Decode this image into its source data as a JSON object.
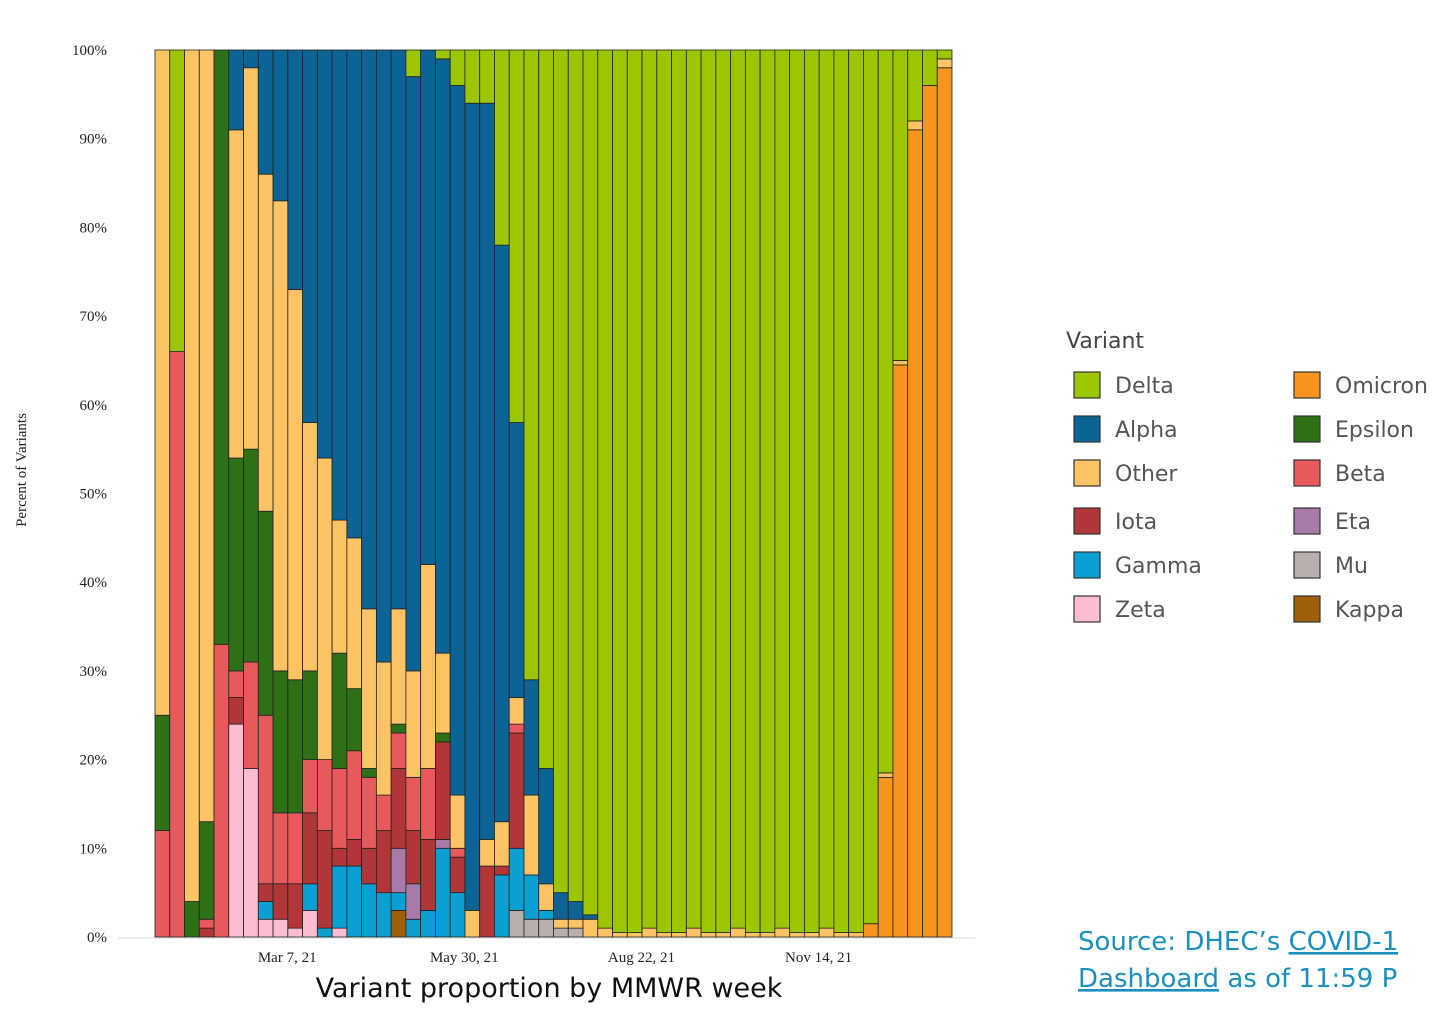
{
  "chart_data": {
    "type": "stacked_bar",
    "xlabel": "Variant proportion by MMWR week",
    "ylabel": "Percent of Variants",
    "legend_title": "Variant",
    "source": {
      "prefix": "Source:  DHEC’s",
      "link1": "COVID-1",
      "link2": "Dashboard",
      "suffix": "as of 11:59 P"
    },
    "ylim": [
      0,
      100
    ],
    "yticks": [
      {
        "value": 0,
        "label": "0%"
      },
      {
        "value": 10,
        "label": "10%"
      },
      {
        "value": 20,
        "label": "20%"
      },
      {
        "value": 30,
        "label": "30%"
      },
      {
        "value": 40,
        "label": "40%"
      },
      {
        "value": 50,
        "label": "50%"
      },
      {
        "value": 60,
        "label": "60%"
      },
      {
        "value": 70,
        "label": "70%"
      },
      {
        "value": 80,
        "label": "80%"
      },
      {
        "value": 90,
        "label": "90%"
      },
      {
        "value": 100,
        "label": "100%"
      }
    ],
    "categories": [
      null,
      null,
      null,
      null,
      null,
      null,
      null,
      null,
      null,
      "Mar 7, 21",
      null,
      null,
      null,
      null,
      null,
      null,
      null,
      null,
      null,
      null,
      null,
      "May 30, 21",
      null,
      null,
      null,
      null,
      null,
      null,
      null,
      null,
      null,
      null,
      null,
      "Aug 22, 21",
      null,
      null,
      null,
      null,
      null,
      null,
      null,
      null,
      null,
      null,
      null,
      "Nov 14, 21",
      null,
      null,
      null,
      null,
      null,
      null,
      null,
      null
    ],
    "series": [
      {
        "name": "Kappa",
        "color": "#a05f0a",
        "values": [
          0,
          0,
          0,
          0,
          0,
          0,
          0,
          0,
          0,
          0,
          0,
          0,
          0,
          0,
          0,
          0,
          3,
          0,
          0,
          0,
          0,
          0,
          0,
          0,
          0,
          0,
          0,
          0,
          0,
          0,
          0,
          0,
          0,
          0,
          0,
          0,
          0,
          0,
          0,
          0,
          0,
          0,
          0,
          0,
          0,
          0,
          0,
          0,
          0,
          0,
          0,
          0,
          0,
          0
        ]
      },
      {
        "name": "Mu",
        "color": "#b8b0ac",
        "values": [
          0,
          0,
          0,
          0,
          0,
          0,
          0,
          0,
          0,
          0,
          0,
          0,
          0,
          0,
          0,
          0,
          0,
          0,
          0,
          0,
          0,
          0,
          0,
          0,
          3,
          2,
          2,
          1,
          1,
          0,
          0,
          0,
          0,
          0,
          0,
          0,
          0,
          0,
          0,
          0,
          0,
          0,
          0,
          0,
          0,
          0,
          0,
          0,
          0,
          0,
          0,
          0,
          0,
          0
        ]
      },
      {
        "name": "Zeta",
        "color": "#fcbdd1",
        "values": [
          0,
          0,
          0,
          0,
          0,
          24,
          19,
          2,
          2,
          1,
          3,
          0,
          1,
          0,
          0,
          0,
          0,
          0,
          0,
          0,
          0,
          0,
          0,
          0,
          0,
          0,
          0,
          0,
          0,
          0,
          0,
          0,
          0,
          0,
          0,
          0,
          0,
          0,
          0,
          0,
          0,
          0,
          0,
          0,
          0,
          0,
          0,
          0,
          0,
          0,
          0,
          0,
          0,
          0
        ]
      },
      {
        "name": "Omicron",
        "color": "#f7941d",
        "values": [
          0,
          0,
          0,
          0,
          0,
          0,
          0,
          0,
          0,
          0,
          0,
          0,
          0,
          0,
          0,
          0,
          0,
          0,
          0,
          0,
          0,
          0,
          0,
          0,
          0,
          0,
          0,
          0,
          0,
          0,
          0,
          0,
          0,
          0,
          0,
          0,
          0,
          0,
          0,
          0,
          0,
          0,
          0,
          0,
          0,
          0,
          0,
          0,
          1.5,
          18,
          64.5,
          91,
          96,
          98
        ]
      },
      {
        "name": "Gamma",
        "color": "#0ba0d4",
        "values": [
          0,
          0,
          0,
          0,
          0,
          0,
          0,
          2,
          0,
          0,
          3,
          1,
          7,
          8,
          6,
          5,
          2,
          2,
          3,
          10,
          5,
          0,
          0,
          7,
          7,
          5,
          1,
          0,
          0,
          0,
          0,
          0,
          0,
          0,
          0,
          0,
          0,
          0,
          0,
          0,
          0,
          0,
          0,
          0,
          0,
          0,
          0,
          0,
          0,
          0,
          0,
          0,
          0,
          0
        ]
      },
      {
        "name": "Eta",
        "color": "#a97aa8",
        "values": [
          0,
          0,
          0,
          0,
          0,
          0,
          0,
          0,
          0,
          0,
          0,
          0,
          0,
          0,
          0,
          0,
          5,
          4,
          0,
          1,
          0,
          0,
          0,
          0,
          0,
          0,
          0,
          0,
          0,
          0,
          0,
          0,
          0,
          0,
          0,
          0,
          0,
          0,
          0,
          0,
          0,
          0,
          0,
          0,
          0,
          0,
          0,
          0,
          0,
          0,
          0,
          0,
          0,
          0
        ]
      },
      {
        "name": "Iota",
        "color": "#b03637",
        "values": [
          0,
          0,
          0,
          1,
          0,
          3,
          0,
          2,
          4,
          5,
          8,
          11,
          2,
          3,
          4,
          7,
          9,
          6,
          8,
          11,
          4,
          0,
          8,
          1,
          13,
          0,
          0,
          0,
          0,
          0,
          0,
          0,
          0,
          0,
          0,
          0,
          0,
          0,
          0,
          0,
          0,
          0,
          0,
          0,
          0,
          0,
          0,
          0,
          0,
          0,
          0,
          0,
          0,
          0
        ]
      },
      {
        "name": "Beta",
        "color": "#e8595b",
        "values": [
          12,
          66,
          0,
          1,
          33,
          3,
          12,
          19,
          8,
          8,
          6,
          8,
          9,
          10,
          8,
          4,
          4,
          6,
          8,
          0,
          1,
          0,
          0,
          0,
          1,
          0,
          0,
          0,
          0,
          0,
          0,
          0,
          0,
          0,
          0,
          0,
          0,
          0,
          0,
          0,
          0,
          0,
          0,
          0,
          0,
          0,
          0,
          0,
          0,
          0,
          0,
          0,
          0,
          0
        ]
      },
      {
        "name": "Epsilon",
        "color": "#2d7016",
        "values": [
          13,
          0,
          4,
          11,
          67,
          24,
          24,
          23,
          16,
          15,
          10,
          0,
          13,
          7,
          1,
          0,
          1,
          0,
          0,
          1,
          0,
          0,
          0,
          0,
          0,
          0,
          0,
          0,
          0,
          0,
          0,
          0,
          0,
          0,
          0,
          0,
          0,
          0,
          0,
          0,
          0,
          0,
          0,
          0,
          0,
          0,
          0,
          0,
          0,
          0,
          0,
          0,
          0,
          0
        ]
      },
      {
        "name": "Other",
        "color": "#fdc365",
        "values": [
          75,
          0,
          96,
          87,
          0,
          37,
          43,
          38,
          53,
          44,
          28,
          34,
          15,
          17,
          18,
          15,
          13,
          12,
          23,
          9,
          6,
          3,
          3,
          5,
          3,
          9,
          3,
          1,
          1,
          2,
          1,
          0.5,
          0.5,
          1,
          0.5,
          0.5,
          1,
          0.5,
          0.5,
          1,
          0.5,
          0.5,
          1,
          0.5,
          0.5,
          1,
          0.5,
          0.5,
          0,
          0.5,
          0.5,
          1,
          0,
          1
        ]
      },
      {
        "name": "Alpha",
        "color": "#0b6396",
        "values": [
          0,
          0,
          0,
          0,
          0,
          9,
          2,
          14,
          17,
          27,
          42,
          46,
          53,
          55,
          63,
          69,
          63,
          67,
          58,
          67,
          80,
          91,
          83,
          65,
          31,
          13,
          13,
          3,
          2,
          0.5,
          0,
          0,
          0,
          0,
          0,
          0,
          0,
          0,
          0,
          0,
          0,
          0,
          0,
          0,
          0,
          0,
          0,
          0,
          0,
          0,
          0,
          0,
          0,
          0
        ]
      },
      {
        "name": "Delta",
        "color": "#9bc600",
        "values": [
          0,
          34,
          0,
          0,
          0,
          0,
          0,
          0,
          0,
          0,
          0,
          0,
          0,
          0,
          0,
          0,
          0,
          3,
          0,
          1,
          4,
          6,
          6,
          22,
          42,
          71,
          81,
          95,
          96,
          97.5,
          99,
          99.5,
          99.5,
          99,
          99.5,
          99.5,
          99,
          99.5,
          99.5,
          99,
          99.5,
          99.5,
          99,
          99.5,
          99.5,
          99,
          99.5,
          99.5,
          98.5,
          81.5,
          35,
          8,
          4,
          1
        ]
      }
    ]
  }
}
